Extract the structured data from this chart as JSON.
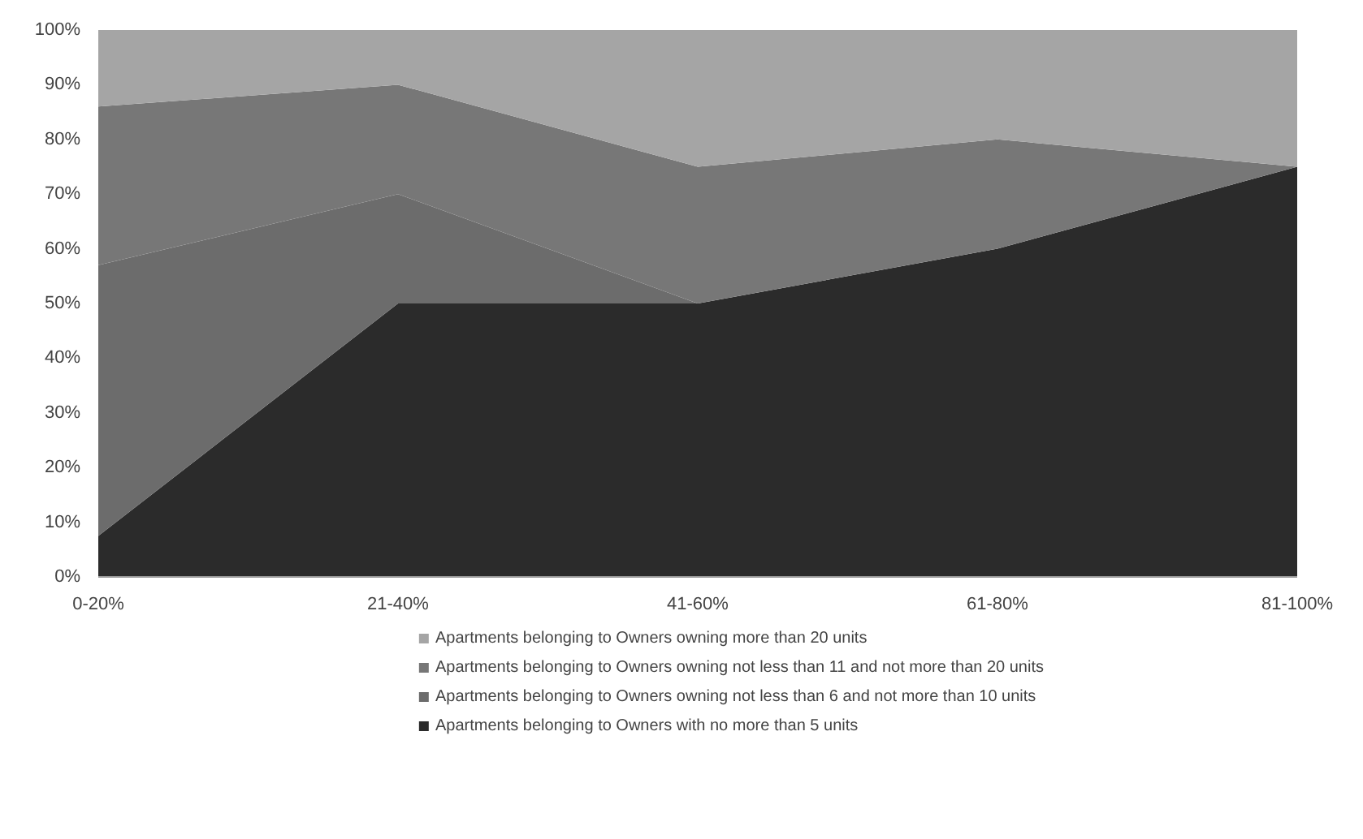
{
  "chart_data": {
    "type": "area",
    "stacked": true,
    "categories": [
      "0-20%",
      "21-40%",
      "41-60%",
      "61-80%",
      "81-100%"
    ],
    "series": [
      {
        "name": "Apartments belonging to Owners with no more than 5 units",
        "color": "#2b2b2b",
        "values": [
          7.5,
          50,
          50,
          60,
          75
        ]
      },
      {
        "name": "Apartments belonging to Owners owning not less than 6 and not more than 10  units",
        "color": "#6c6c6c",
        "values": [
          49.5,
          20,
          0,
          0,
          0
        ]
      },
      {
        "name": "Apartments belonging to Owners owning not less than 11 and not more than 20  units",
        "color": "#777777",
        "values": [
          29,
          20,
          25,
          20,
          0
        ]
      },
      {
        "name": "Apartments belonging to Owners owning  more than 20  units",
        "color": "#a5a5a5",
        "values": [
          14,
          10,
          25,
          20,
          25
        ]
      }
    ],
    "ylim": [
      0,
      100
    ],
    "yticks": [
      {
        "value": 0,
        "label": "0%"
      },
      {
        "value": 10,
        "label": "10%"
      },
      {
        "value": 20,
        "label": "20%"
      },
      {
        "value": 30,
        "label": "30%"
      },
      {
        "value": 40,
        "label": "40%"
      },
      {
        "value": 50,
        "label": "50%"
      },
      {
        "value": 60,
        "label": "60%"
      },
      {
        "value": 70,
        "label": "70%"
      },
      {
        "value": 80,
        "label": "80%"
      },
      {
        "value": 90,
        "label": "90%"
      },
      {
        "value": 100,
        "label": "100%"
      }
    ],
    "grid": false,
    "legend": "bottom"
  }
}
